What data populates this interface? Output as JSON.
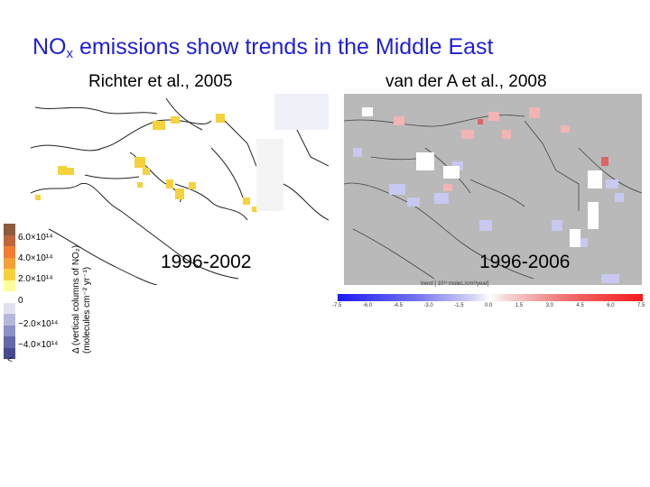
{
  "slide": {
    "title_main": "NO",
    "title_sub": "x",
    "title_rest": " emissions show trends in the Middle East"
  },
  "left_panel": {
    "caption": "Richter et al., 2005",
    "period": "1996-2002",
    "colorbar": {
      "colors": [
        "#8c5a3c",
        "#c0643c",
        "#f07d32",
        "#f5a037",
        "#f5d23c",
        "#ffff99",
        "#ffffff",
        "#e0e0f0",
        "#b4b9dc",
        "#8c91c8",
        "#6469aa",
        "#464b91"
      ],
      "ticks": [
        "6.0×10¹⁴",
        "4.0×10¹⁴",
        "2.0×10¹⁴",
        "0",
        "−2.0×10¹⁴",
        "−4.0×10¹⁴",
        "<"
      ],
      "label_line1": "Δ (vertical columns of NO₂)",
      "label_line2": "(molecules cm⁻² yr⁻¹)"
    }
  },
  "right_panel": {
    "caption": "van der A et al., 2008",
    "period": "1996-2006",
    "colorbar": {
      "trend_label": "trend [ 10¹³ molec./cm²/year]",
      "ticks": [
        "-7.5",
        "-6.0",
        "-4.5",
        "-3.0",
        "-1.5",
        "0.0",
        "1.5",
        "3.0",
        "4.5",
        "6.0",
        "7.5"
      ]
    }
  }
}
